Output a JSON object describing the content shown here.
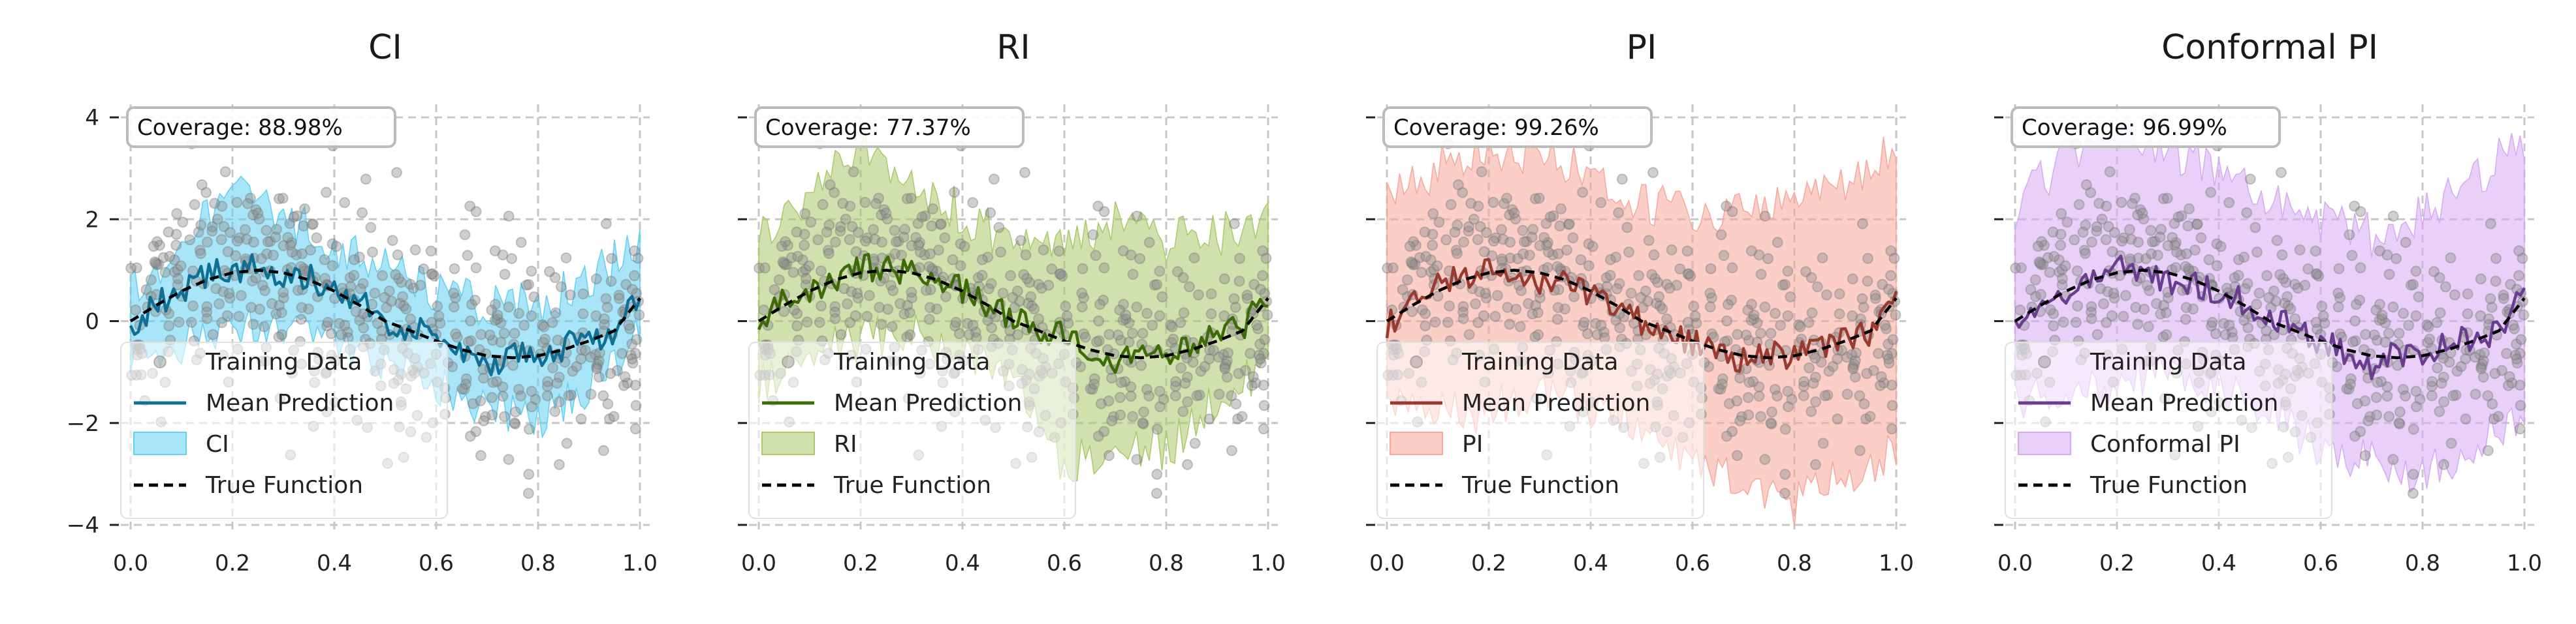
{
  "chart_data": [
    {
      "type": "line",
      "title": "CI",
      "coverage_label": "Coverage: 88.98%",
      "interval_label": "CI",
      "color": "#0f6f94",
      "band_color": "#62d0f2",
      "xlim": [
        0.0,
        1.0
      ],
      "ylim": [
        -4,
        4
      ],
      "x_ticks": [
        "0.0",
        "0.2",
        "0.4",
        "0.6",
        "0.8",
        "1.0"
      ],
      "y_ticks": [
        "4",
        "2",
        "0",
        "−2",
        "−4"
      ],
      "grid": true,
      "legend": {
        "placement": "lower-left",
        "entries": [
          "Training Data",
          "Mean Prediction",
          "CI",
          "True Function"
        ]
      },
      "true_function": {
        "x": [
          0.0,
          0.05,
          0.1,
          0.15,
          0.2,
          0.25,
          0.3,
          0.35,
          0.4,
          0.45,
          0.5,
          0.55,
          0.6,
          0.65,
          0.7,
          0.75,
          0.8,
          0.85,
          0.9,
          0.95,
          1.0
        ],
        "y": [
          0.0,
          0.31,
          0.59,
          0.81,
          0.95,
          1.0,
          0.95,
          0.81,
          0.59,
          0.31,
          0.0,
          -0.19,
          -0.39,
          -0.56,
          -0.68,
          -0.72,
          -0.68,
          -0.56,
          -0.39,
          -0.19,
          0.45
        ]
      },
      "mean_prediction": {
        "x": [
          0.0,
          0.05,
          0.1,
          0.15,
          0.2,
          0.25,
          0.3,
          0.35,
          0.4,
          0.45,
          0.5,
          0.55,
          0.6,
          0.65,
          0.7,
          0.75,
          0.8,
          0.85,
          0.9,
          0.95,
          1.0
        ],
        "y": [
          -0.2,
          0.4,
          0.5,
          0.9,
          1.0,
          1.1,
          0.8,
          0.9,
          0.5,
          0.4,
          -0.1,
          -0.1,
          -0.3,
          -0.6,
          -0.9,
          -0.6,
          -0.8,
          -0.5,
          -0.4,
          -0.2,
          0.6
        ]
      },
      "interval": {
        "x": [
          0.0,
          0.1,
          0.2,
          0.3,
          0.4,
          0.5,
          0.6,
          0.7,
          0.8,
          0.9,
          1.0
        ],
        "lower": [
          -0.7,
          -0.4,
          0.0,
          0.0,
          -0.3,
          -0.9,
          -1.3,
          -1.8,
          -1.9,
          -1.3,
          -0.3
        ],
        "upper": [
          0.6,
          1.6,
          2.5,
          2.1,
          1.5,
          1.0,
          0.6,
          0.3,
          0.3,
          0.8,
          1.5
        ]
      }
    },
    {
      "type": "line",
      "title": "RI",
      "coverage_label": "Coverage: 77.37%",
      "interval_label": "RI",
      "color": "#3d6b08",
      "band_color": "#a9c96a",
      "xlim": [
        0.0,
        1.0
      ],
      "ylim": [
        -4,
        4
      ],
      "x_ticks": [
        "0.0",
        "0.2",
        "0.4",
        "0.6",
        "0.8",
        "1.0"
      ],
      "y_ticks": [
        "4",
        "2",
        "0",
        "−2",
        "−4"
      ],
      "grid": true,
      "legend": {
        "placement": "lower-left",
        "entries": [
          "Training Data",
          "Mean Prediction",
          "RI",
          "True Function"
        ]
      },
      "true_function": {
        "x": [
          0.0,
          0.05,
          0.1,
          0.15,
          0.2,
          0.25,
          0.3,
          0.35,
          0.4,
          0.45,
          0.5,
          0.55,
          0.6,
          0.65,
          0.7,
          0.75,
          0.8,
          0.85,
          0.9,
          0.95,
          1.0
        ],
        "y": [
          0.0,
          0.31,
          0.59,
          0.81,
          0.95,
          1.0,
          0.95,
          0.81,
          0.59,
          0.31,
          0.0,
          -0.19,
          -0.39,
          -0.56,
          -0.68,
          -0.72,
          -0.68,
          -0.56,
          -0.39,
          -0.19,
          0.45
        ]
      },
      "mean_prediction": {
        "x": [
          0.0,
          0.05,
          0.1,
          0.15,
          0.2,
          0.25,
          0.3,
          0.35,
          0.4,
          0.45,
          0.5,
          0.55,
          0.6,
          0.65,
          0.7,
          0.75,
          0.8,
          0.85,
          0.9,
          0.95,
          1.0
        ],
        "y": [
          -0.1,
          0.5,
          0.6,
          0.8,
          1.1,
          1.0,
          0.9,
          0.8,
          0.6,
          0.3,
          0.1,
          -0.2,
          -0.3,
          -0.6,
          -0.8,
          -0.7,
          -0.7,
          -0.5,
          -0.3,
          -0.1,
          0.5
        ]
      },
      "interval": {
        "x": [
          0.0,
          0.1,
          0.2,
          0.3,
          0.4,
          0.5,
          0.6,
          0.7,
          0.8,
          0.9,
          1.0
        ],
        "lower": [
          -1.2,
          -0.6,
          -0.4,
          -0.2,
          -0.6,
          -1.2,
          -2.8,
          -2.6,
          -2.5,
          -1.6,
          -0.8
        ],
        "upper": [
          1.6,
          2.5,
          3.5,
          2.8,
          2.1,
          1.5,
          1.7,
          1.9,
          1.6,
          1.7,
          1.9
        ]
      }
    },
    {
      "type": "line",
      "title": "PI",
      "coverage_label": "Coverage: 99.26%",
      "interval_label": "PI",
      "color": "#9a3a2f",
      "band_color": "#f7a79b",
      "xlim": [
        0.0,
        1.0
      ],
      "ylim": [
        -4,
        4
      ],
      "x_ticks": [
        "0.0",
        "0.2",
        "0.4",
        "0.6",
        "0.8",
        "1.0"
      ],
      "y_ticks": [
        "4",
        "2",
        "0",
        "−2",
        "−4"
      ],
      "grid": true,
      "legend": {
        "placement": "lower-left",
        "entries": [
          "Training Data",
          "Mean Prediction",
          "PI",
          "True Function"
        ]
      },
      "true_function": {
        "x": [
          0.0,
          0.05,
          0.1,
          0.15,
          0.2,
          0.25,
          0.3,
          0.35,
          0.4,
          0.45,
          0.5,
          0.55,
          0.6,
          0.65,
          0.7,
          0.75,
          0.8,
          0.85,
          0.9,
          0.95,
          1.0
        ],
        "y": [
          0.0,
          0.31,
          0.59,
          0.81,
          0.95,
          1.0,
          0.95,
          0.81,
          0.59,
          0.31,
          0.0,
          -0.19,
          -0.39,
          -0.56,
          -0.68,
          -0.72,
          -0.68,
          -0.56,
          -0.39,
          -0.19,
          0.45
        ]
      },
      "mean_prediction": {
        "x": [
          0.0,
          0.05,
          0.1,
          0.15,
          0.2,
          0.25,
          0.3,
          0.35,
          0.4,
          0.45,
          0.5,
          0.55,
          0.6,
          0.65,
          0.7,
          0.75,
          0.8,
          0.85,
          0.9,
          0.95,
          1.0
        ],
        "y": [
          -0.1,
          0.4,
          0.7,
          0.9,
          1.0,
          1.0,
          0.8,
          0.9,
          0.5,
          0.3,
          0.0,
          -0.2,
          -0.4,
          -0.7,
          -0.8,
          -0.6,
          -0.7,
          -0.5,
          -0.3,
          -0.2,
          0.5
        ]
      },
      "interval": {
        "x": [
          0.0,
          0.1,
          0.2,
          0.3,
          0.4,
          0.5,
          0.6,
          0.7,
          0.8,
          0.9,
          1.0
        ],
        "lower": [
          -1.4,
          -1.8,
          -1.8,
          -1.3,
          -1.7,
          -2.0,
          -2.8,
          -3.3,
          -3.6,
          -3.0,
          -2.5
        ],
        "upper": [
          2.5,
          3.0,
          3.4,
          3.3,
          2.9,
          2.3,
          2.2,
          2.1,
          2.6,
          2.8,
          3.4
        ]
      }
    },
    {
      "type": "line",
      "title": "Conformal PI",
      "coverage_label": "Coverage: 96.99%",
      "interval_label": "Conformal PI",
      "color": "#6a3d91",
      "band_color": "#d6a9f4",
      "xlim": [
        0.0,
        1.0
      ],
      "ylim": [
        -4,
        4
      ],
      "x_ticks": [
        "0.0",
        "0.2",
        "0.4",
        "0.6",
        "0.8",
        "1.0"
      ],
      "y_ticks": [
        "4",
        "2",
        "0",
        "−2",
        "−4"
      ],
      "grid": true,
      "legend": {
        "placement": "lower-left",
        "entries": [
          "Training Data",
          "Mean Prediction",
          "Conformal PI",
          "True Function"
        ]
      },
      "true_function": {
        "x": [
          0.0,
          0.05,
          0.1,
          0.15,
          0.2,
          0.25,
          0.3,
          0.35,
          0.4,
          0.45,
          0.5,
          0.55,
          0.6,
          0.65,
          0.7,
          0.75,
          0.8,
          0.85,
          0.9,
          0.95,
          1.0
        ],
        "y": [
          0.0,
          0.31,
          0.59,
          0.81,
          0.95,
          1.0,
          0.95,
          0.81,
          0.59,
          0.31,
          0.0,
          -0.19,
          -0.39,
          -0.56,
          -0.68,
          -0.72,
          -0.68,
          -0.56,
          -0.39,
          -0.19,
          0.45
        ]
      },
      "mean_prediction": {
        "x": [
          0.0,
          0.05,
          0.1,
          0.15,
          0.2,
          0.25,
          0.3,
          0.35,
          0.4,
          0.45,
          0.5,
          0.55,
          0.6,
          0.65,
          0.7,
          0.75,
          0.8,
          0.85,
          0.9,
          0.95,
          1.0
        ],
        "y": [
          -0.2,
          0.5,
          0.6,
          0.9,
          1.1,
          1.0,
          0.8,
          0.8,
          0.5,
          0.4,
          0.0,
          -0.1,
          -0.4,
          -0.6,
          -0.9,
          -0.6,
          -0.8,
          -0.4,
          -0.3,
          -0.2,
          0.6
        ]
      },
      "interval": {
        "x": [
          0.0,
          0.1,
          0.2,
          0.3,
          0.4,
          0.5,
          0.6,
          0.7,
          0.8,
          0.9,
          1.0
        ],
        "lower": [
          -1.6,
          -1.5,
          -1.2,
          -1.0,
          -1.4,
          -1.7,
          -2.6,
          -2.8,
          -3.0,
          -2.4,
          -1.9
        ],
        "upper": [
          2.2,
          3.2,
          3.9,
          3.4,
          3.0,
          2.3,
          2.0,
          1.7,
          2.1,
          2.7,
          3.6
        ]
      }
    }
  ]
}
